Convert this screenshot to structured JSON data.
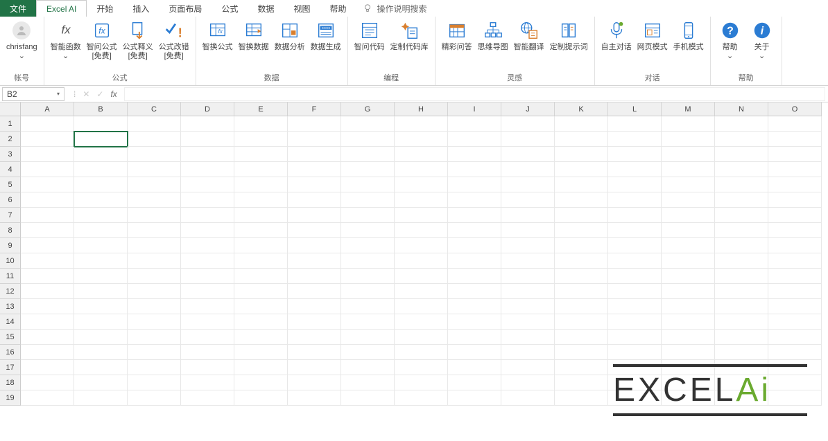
{
  "tabs": {
    "file": "文件",
    "active": "Excel AI",
    "others": [
      "开始",
      "插入",
      "页面布局",
      "公式",
      "数据",
      "视图",
      "帮助"
    ],
    "search_hint": "操作说明搜索"
  },
  "ribbon": {
    "groups": [
      {
        "label": "帐号",
        "items": [
          {
            "name": "account",
            "label": "chrisfang\n⌄",
            "icon": "avatar"
          }
        ]
      },
      {
        "label": "公式",
        "items": [
          {
            "name": "smart-fn",
            "label": "智能函数\n⌄",
            "icon": "fx-plain"
          },
          {
            "name": "ask-formula",
            "label": "智问公式\n[免费]",
            "icon": "fx-box"
          },
          {
            "name": "explain-formula",
            "label": "公式释义\n[免费]",
            "icon": "doc-arrow"
          },
          {
            "name": "fix-formula",
            "label": "公式改错\n[免费]",
            "icon": "check-excl"
          }
        ]
      },
      {
        "label": "数据",
        "items": [
          {
            "name": "swap-formula",
            "label": "智换公式",
            "icon": "fx-grid"
          },
          {
            "name": "swap-data",
            "label": "智换数据",
            "icon": "grid-arrow"
          },
          {
            "name": "analyze",
            "label": "数据分析",
            "icon": "split-box"
          },
          {
            "name": "generate",
            "label": "数据生成",
            "icon": "xxxx-box"
          }
        ]
      },
      {
        "label": "编程",
        "items": [
          {
            "name": "ask-code",
            "label": "智问代码",
            "icon": "code-list"
          },
          {
            "name": "code-lib",
            "label": "定制代码库",
            "icon": "sparkle-doc"
          }
        ]
      },
      {
        "label": "灵感",
        "items": [
          {
            "name": "qa",
            "label": "精彩问答",
            "icon": "calendar"
          },
          {
            "name": "mindmap",
            "label": "思维导图",
            "icon": "org-chart"
          },
          {
            "name": "translate",
            "label": "智能翻译",
            "icon": "globe-doc"
          },
          {
            "name": "prompts",
            "label": "定制提示词",
            "icon": "book"
          }
        ]
      },
      {
        "label": "对话",
        "items": [
          {
            "name": "auto-chat",
            "label": "自主对话",
            "icon": "mic"
          },
          {
            "name": "web-mode",
            "label": "网页模式",
            "icon": "browser"
          },
          {
            "name": "phone-mode",
            "label": "手机模式",
            "icon": "phone"
          }
        ]
      },
      {
        "label": "帮助",
        "items": [
          {
            "name": "help",
            "label": "帮助\n⌄",
            "icon": "help"
          },
          {
            "name": "about",
            "label": "关于\n⌄",
            "icon": "info"
          }
        ]
      }
    ]
  },
  "formula_bar": {
    "cell_ref": "B2",
    "value": ""
  },
  "grid": {
    "columns": [
      "A",
      "B",
      "C",
      "D",
      "E",
      "F",
      "G",
      "H",
      "I",
      "J",
      "K",
      "L",
      "M",
      "N",
      "O"
    ],
    "rows": 19,
    "selected": {
      "row": 2,
      "col": 2
    }
  },
  "watermark": {
    "text": "EXCEL",
    "suffix": "Ai"
  },
  "colors": {
    "primary": "#217346",
    "icon_blue": "#2b7cd3",
    "icon_orange": "#d97f2e",
    "icon_green": "#6aaa2f"
  }
}
